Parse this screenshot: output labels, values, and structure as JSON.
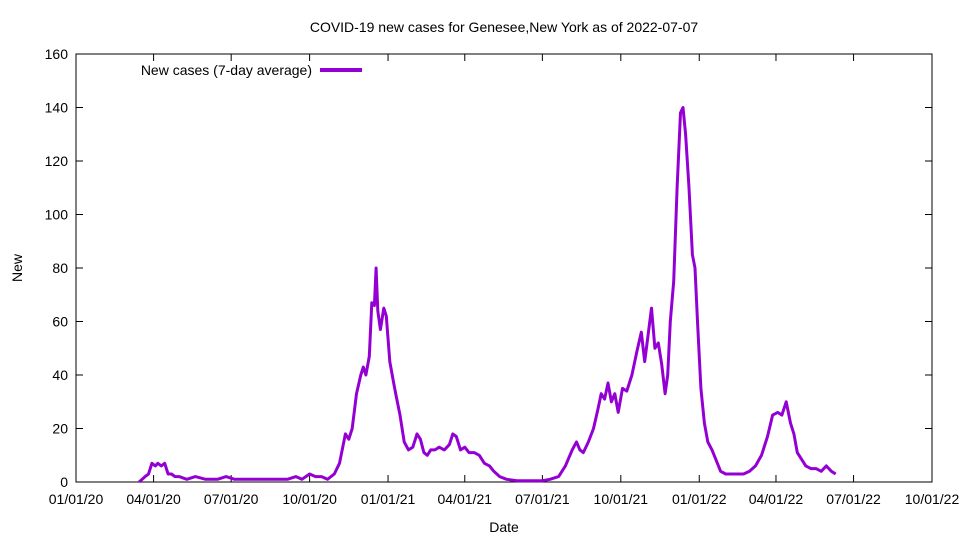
{
  "chart_data": {
    "type": "line",
    "title": "COVID-19 new cases for Genesee,New York as of 2022-07-07",
    "xlabel": "Date",
    "ylabel": "New",
    "xlim": [
      "2020-01-01",
      "2022-10-01"
    ],
    "ylim": [
      0,
      160
    ],
    "x_ticks": [
      "01/01/20",
      "04/01/20",
      "07/01/20",
      "10/01/20",
      "01/01/21",
      "04/01/21",
      "07/01/21",
      "10/01/21",
      "01/01/22",
      "04/01/22",
      "07/01/22",
      "10/01/22"
    ],
    "y_ticks": [
      0,
      20,
      40,
      60,
      80,
      100,
      120,
      140,
      160
    ],
    "grid": false,
    "legend_position": "top-left",
    "series": [
      {
        "name": "New cases (7-day average)",
        "color": "#9400d3",
        "points": [
          [
            "2020-03-15",
            0
          ],
          [
            "2020-03-22",
            2
          ],
          [
            "2020-03-26",
            3
          ],
          [
            "2020-03-30",
            7
          ],
          [
            "2020-04-03",
            6
          ],
          [
            "2020-04-06",
            7
          ],
          [
            "2020-04-10",
            6
          ],
          [
            "2020-04-14",
            7
          ],
          [
            "2020-04-18",
            3
          ],
          [
            "2020-04-22",
            3
          ],
          [
            "2020-04-26",
            2
          ],
          [
            "2020-05-01",
            2
          ],
          [
            "2020-05-10",
            1
          ],
          [
            "2020-05-20",
            2
          ],
          [
            "2020-06-01",
            1
          ],
          [
            "2020-06-15",
            1
          ],
          [
            "2020-06-25",
            2
          ],
          [
            "2020-07-05",
            1
          ],
          [
            "2020-07-15",
            1
          ],
          [
            "2020-07-25",
            1
          ],
          [
            "2020-08-05",
            1
          ],
          [
            "2020-08-15",
            1
          ],
          [
            "2020-08-25",
            1
          ],
          [
            "2020-09-05",
            1
          ],
          [
            "2020-09-15",
            2
          ],
          [
            "2020-09-22",
            1
          ],
          [
            "2020-10-01",
            3
          ],
          [
            "2020-10-08",
            2
          ],
          [
            "2020-10-15",
            2
          ],
          [
            "2020-10-22",
            1
          ],
          [
            "2020-10-30",
            3
          ],
          [
            "2020-11-05",
            7
          ],
          [
            "2020-11-12",
            18
          ],
          [
            "2020-11-16",
            16
          ],
          [
            "2020-11-20",
            20
          ],
          [
            "2020-11-25",
            33
          ],
          [
            "2020-11-30",
            40
          ],
          [
            "2020-12-03",
            43
          ],
          [
            "2020-12-06",
            40
          ],
          [
            "2020-12-10",
            47
          ],
          [
            "2020-12-13",
            67
          ],
          [
            "2020-12-16",
            66
          ],
          [
            "2020-12-18",
            80
          ],
          [
            "2020-12-20",
            64
          ],
          [
            "2020-12-23",
            57
          ],
          [
            "2020-12-27",
            65
          ],
          [
            "2020-12-30",
            62
          ],
          [
            "2021-01-03",
            45
          ],
          [
            "2021-01-07",
            38
          ],
          [
            "2021-01-10",
            33
          ],
          [
            "2021-01-15",
            25
          ],
          [
            "2021-01-20",
            15
          ],
          [
            "2021-01-25",
            12
          ],
          [
            "2021-01-30",
            13
          ],
          [
            "2021-02-04",
            18
          ],
          [
            "2021-02-08",
            16
          ],
          [
            "2021-02-12",
            11
          ],
          [
            "2021-02-16",
            10
          ],
          [
            "2021-02-20",
            12
          ],
          [
            "2021-02-25",
            12
          ],
          [
            "2021-03-02",
            13
          ],
          [
            "2021-03-08",
            12
          ],
          [
            "2021-03-14",
            14
          ],
          [
            "2021-03-18",
            18
          ],
          [
            "2021-03-22",
            17
          ],
          [
            "2021-03-27",
            12
          ],
          [
            "2021-04-01",
            13
          ],
          [
            "2021-04-06",
            11
          ],
          [
            "2021-04-12",
            11
          ],
          [
            "2021-04-18",
            10
          ],
          [
            "2021-04-24",
            7
          ],
          [
            "2021-04-30",
            6
          ],
          [
            "2021-05-05",
            4
          ],
          [
            "2021-05-12",
            2
          ],
          [
            "2021-05-20",
            1
          ],
          [
            "2021-06-01",
            0.5
          ],
          [
            "2021-06-15",
            0.5
          ],
          [
            "2021-07-01",
            0.5
          ],
          [
            "2021-07-10",
            1
          ],
          [
            "2021-07-20",
            2
          ],
          [
            "2021-07-28",
            6
          ],
          [
            "2021-08-05",
            12
          ],
          [
            "2021-08-10",
            15
          ],
          [
            "2021-08-14",
            12
          ],
          [
            "2021-08-18",
            11
          ],
          [
            "2021-08-24",
            15
          ],
          [
            "2021-08-30",
            20
          ],
          [
            "2021-09-04",
            27
          ],
          [
            "2021-09-08",
            33
          ],
          [
            "2021-09-12",
            31
          ],
          [
            "2021-09-16",
            37
          ],
          [
            "2021-09-20",
            30
          ],
          [
            "2021-09-24",
            33
          ],
          [
            "2021-09-28",
            26
          ],
          [
            "2021-10-03",
            35
          ],
          [
            "2021-10-08",
            34
          ],
          [
            "2021-10-14",
            40
          ],
          [
            "2021-10-20",
            49
          ],
          [
            "2021-10-25",
            56
          ],
          [
            "2021-10-29",
            45
          ],
          [
            "2021-11-02",
            55
          ],
          [
            "2021-11-06",
            65
          ],
          [
            "2021-11-10",
            50
          ],
          [
            "2021-11-14",
            52
          ],
          [
            "2021-11-18",
            44
          ],
          [
            "2021-11-22",
            33
          ],
          [
            "2021-11-25",
            40
          ],
          [
            "2021-11-28",
            60
          ],
          [
            "2021-12-02",
            75
          ],
          [
            "2021-12-06",
            110
          ],
          [
            "2021-12-10",
            138
          ],
          [
            "2021-12-13",
            140
          ],
          [
            "2021-12-16",
            130
          ],
          [
            "2021-12-20",
            110
          ],
          [
            "2021-12-24",
            85
          ],
          [
            "2021-12-27",
            80
          ],
          [
            "2021-12-30",
            60
          ],
          [
            "2022-01-03",
            35
          ],
          [
            "2022-01-07",
            22
          ],
          [
            "2022-01-11",
            15
          ],
          [
            "2022-01-16",
            12
          ],
          [
            "2022-01-21",
            8
          ],
          [
            "2022-01-26",
            4
          ],
          [
            "2022-02-01",
            3
          ],
          [
            "2022-02-08",
            3
          ],
          [
            "2022-02-15",
            3
          ],
          [
            "2022-02-22",
            3
          ],
          [
            "2022-03-01",
            4
          ],
          [
            "2022-03-08",
            6
          ],
          [
            "2022-03-15",
            10
          ],
          [
            "2022-03-22",
            17
          ],
          [
            "2022-03-28",
            25
          ],
          [
            "2022-04-03",
            26
          ],
          [
            "2022-04-08",
            25
          ],
          [
            "2022-04-13",
            30
          ],
          [
            "2022-04-18",
            22
          ],
          [
            "2022-04-22",
            18
          ],
          [
            "2022-04-26",
            11
          ],
          [
            "2022-04-30",
            9
          ],
          [
            "2022-05-06",
            6
          ],
          [
            "2022-05-12",
            5
          ],
          [
            "2022-05-18",
            5
          ],
          [
            "2022-05-24",
            4
          ],
          [
            "2022-05-30",
            6
          ],
          [
            "2022-06-05",
            4
          ],
          [
            "2022-06-10",
            3
          ]
        ]
      }
    ]
  }
}
